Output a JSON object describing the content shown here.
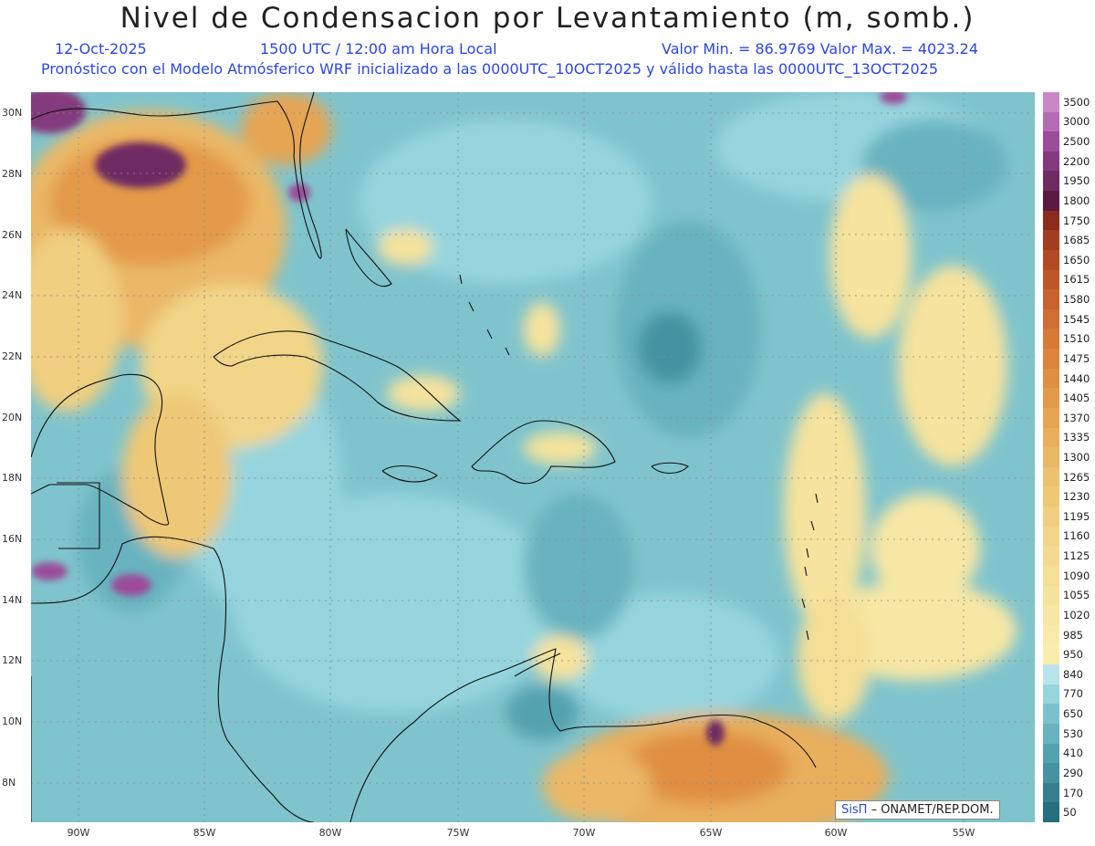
{
  "header": {
    "title": "Nivel de Condensacion por Levantamiento (m, somb.)",
    "date": "12-Oct-2025",
    "time": "1500 UTC / 12:00 am Hora Local",
    "minmax": "Valor Min. = 86.9769  Valor Max. = 4023.24",
    "model_info": "Pronóstico con el Modelo Atmósferico WRF inicializado a las 0000UTC_10OCT2025 y válido hasta las  0000UTC_13OCT2025"
  },
  "axes": {
    "lat_labels": [
      "30N",
      "28N",
      "26N",
      "24N",
      "22N",
      "20N",
      "18N",
      "16N",
      "14N",
      "12N",
      "10N",
      "8N"
    ],
    "lon_labels": [
      "90W",
      "85W",
      "80W",
      "75W",
      "70W",
      "65W",
      "60W",
      "55W"
    ]
  },
  "colorbar": {
    "labels": [
      "3500",
      "3000",
      "2500",
      "2200",
      "1950",
      "1800",
      "1750",
      "1685",
      "1650",
      "1615",
      "1580",
      "1545",
      "1510",
      "1475",
      "1440",
      "1405",
      "1370",
      "1335",
      "1300",
      "1265",
      "1230",
      "1195",
      "1160",
      "1125",
      "1090",
      "1055",
      "1020",
      "985",
      "950",
      "840",
      "770",
      "650",
      "530",
      "410",
      "290",
      "170",
      "50"
    ],
    "colors": [
      "#c987c7",
      "#b56cb4",
      "#9b4c9a",
      "#843a7e",
      "#6e2b62",
      "#5b1a3f",
      "#8b2c1e",
      "#a33d22",
      "#b34a25",
      "#c05628",
      "#c8622e",
      "#d06d33",
      "#d77937",
      "#dc843c",
      "#e08f42",
      "#e39a4a",
      "#e6a553",
      "#e8af5d",
      "#eab866",
      "#ecc16f",
      "#eec877",
      "#f0cf80",
      "#f2d588",
      "#f3da8f",
      "#f5df96",
      "#f6e39d",
      "#f7e7a4",
      "#f8eaa9",
      "#f9edae",
      "#b8e5ea",
      "#96d5dd",
      "#7cc2cc",
      "#68b3bf",
      "#55a2af",
      "#4593a2",
      "#367f90",
      "#266e80"
    ]
  },
  "credit": {
    "logo": "SisΠ",
    "text": "– ONAMET/REP.DOM."
  }
}
